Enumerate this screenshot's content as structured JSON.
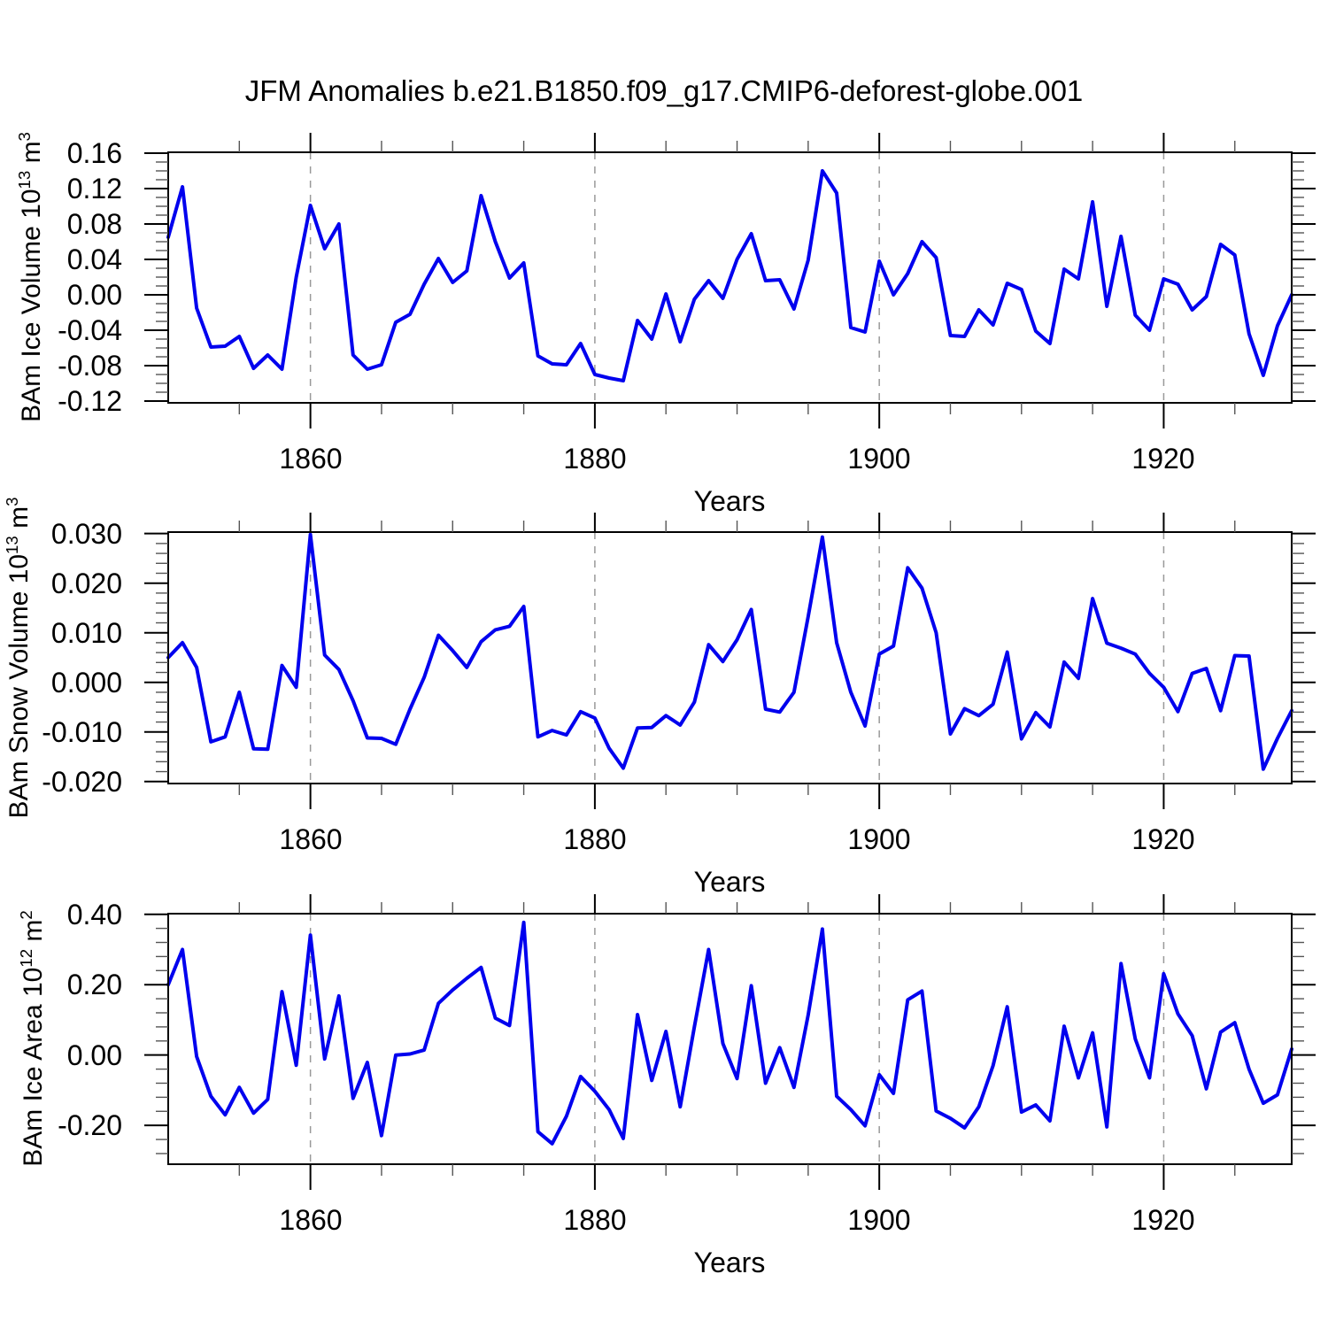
{
  "title": "JFM Anomalies b.e21.B1850.f09_g17.CMIP6-deforest-globe.001",
  "figure": {
    "background": "#ffffff",
    "line_color": "#0000ee",
    "grid_color": "#999999",
    "minor_tick_color": "#555555",
    "axis_color": "#000000"
  },
  "chart_data": [
    {
      "type": "line",
      "name": "bam-ice-volume",
      "ylabel_text": "BAm Ice Volume 10",
      "ylabel_exp": "13",
      "ylabel_unit": " m",
      "ylabel_unit_exp": "3",
      "xlabel": "Years",
      "x_start": 1850,
      "x_end": 1929,
      "x_step": 1,
      "xlim": [
        1850,
        1929
      ],
      "ylim": [
        -0.12,
        0.16
      ],
      "grid": "dashed-vertical-at-major-xticks",
      "legend": "none",
      "xticks": [
        1860,
        1880,
        1900,
        1920
      ],
      "xtick_labels": [
        "1860",
        "1880",
        "1900",
        "1920"
      ],
      "xtick_minor_step": 5,
      "yticks": [
        0.16,
        0.12,
        0.08,
        0.04,
        0.0,
        -0.04,
        -0.08,
        -0.12
      ],
      "ytick_labels": [
        "0.16",
        "0.12",
        "0.08",
        "0.04",
        "0.00",
        "-0.04",
        "-0.08",
        "-0.12"
      ],
      "ytick_minor": {
        "from": -0.12,
        "to": 0.16,
        "step": 0.01
      },
      "values": [
        0.065,
        0.122,
        -0.015,
        -0.059,
        -0.058,
        -0.047,
        -0.083,
        -0.068,
        -0.084,
        0.02,
        0.101,
        0.052,
        0.08,
        -0.068,
        -0.084,
        -0.079,
        -0.031,
        -0.022,
        0.012,
        0.041,
        0.014,
        0.027,
        0.112,
        0.06,
        0.019,
        0.036,
        -0.069,
        -0.078,
        -0.079,
        -0.055,
        -0.09,
        -0.094,
        -0.097,
        -0.029,
        -0.05,
        0.001,
        -0.053,
        -0.005,
        0.016,
        -0.004,
        0.04,
        0.069,
        0.016,
        0.017,
        -0.016,
        0.039,
        0.14,
        0.115,
        -0.037,
        -0.042,
        0.038,
        0.0,
        0.024,
        0.06,
        0.042,
        -0.046,
        -0.047,
        -0.017,
        -0.034,
        0.013,
        0.006,
        -0.041,
        -0.055,
        0.029,
        0.018,
        0.105,
        -0.013,
        0.066,
        -0.023,
        -0.04,
        0.018,
        0.012,
        -0.017,
        -0.002,
        0.057,
        0.045,
        -0.044,
        -0.091,
        -0.035,
        0.0
      ]
    },
    {
      "type": "line",
      "name": "bam-snow-volume",
      "ylabel_text": "BAm Snow Volume 10",
      "ylabel_exp": "13",
      "ylabel_unit": " m",
      "ylabel_unit_exp": "3",
      "xlabel": "Years",
      "x_start": 1850,
      "x_end": 1929,
      "x_step": 1,
      "xlim": [
        1850,
        1929
      ],
      "ylim": [
        -0.02,
        0.03
      ],
      "grid": "dashed-vertical-at-major-xticks",
      "legend": "none",
      "xticks": [
        1860,
        1880,
        1900,
        1920
      ],
      "xtick_labels": [
        "1860",
        "1880",
        "1900",
        "1920"
      ],
      "xtick_minor_step": 5,
      "yticks": [
        0.03,
        0.02,
        0.01,
        0.0,
        -0.01,
        -0.02
      ],
      "ytick_labels": [
        "0.030",
        "0.020",
        "0.010",
        "0.000",
        "-0.010",
        "-0.020"
      ],
      "ytick_minor": {
        "from": -0.02,
        "to": 0.03,
        "step": 0.002
      },
      "values": [
        0.005,
        0.008,
        0.003,
        -0.012,
        -0.011,
        -0.002,
        -0.0134,
        -0.0135,
        0.0034,
        -0.001,
        0.0298,
        0.0055,
        0.0026,
        -0.0037,
        -0.0112,
        -0.0113,
        -0.0125,
        -0.0054,
        0.001,
        0.0095,
        0.0064,
        0.003,
        0.0082,
        0.0106,
        0.0113,
        0.0153,
        -0.011,
        -0.0097,
        -0.0106,
        -0.0059,
        -0.0072,
        -0.0133,
        -0.0173,
        -0.0092,
        -0.0091,
        -0.0067,
        -0.0086,
        -0.004,
        0.0076,
        0.0042,
        0.0086,
        0.0147,
        -0.0054,
        -0.006,
        -0.002,
        0.0132,
        0.0293,
        0.008,
        -0.002,
        -0.0088,
        0.0057,
        0.0073,
        0.0231,
        0.019,
        0.01,
        -0.0104,
        -0.0053,
        -0.0067,
        -0.0044,
        0.0061,
        -0.0114,
        -0.0061,
        -0.009,
        0.0041,
        0.0008,
        0.0169,
        0.0079,
        0.0069,
        0.0057,
        0.0018,
        -0.001,
        -0.0059,
        0.0018,
        0.0028,
        -0.0057,
        0.0054,
        0.0053,
        -0.0175,
        -0.0113,
        -0.0057
      ]
    },
    {
      "type": "line",
      "name": "bam-ice-area",
      "ylabel_text": "BAm Ice Area 10",
      "ylabel_exp": "12",
      "ylabel_unit": " m",
      "ylabel_unit_exp": "2",
      "xlabel": "Years",
      "x_start": 1850,
      "x_end": 1929,
      "x_step": 1,
      "xlim": [
        1850,
        1929
      ],
      "ylim": [
        -0.31,
        0.4
      ],
      "grid": "dashed-vertical-at-major-xticks",
      "legend": "none",
      "xticks": [
        1860,
        1880,
        1900,
        1920
      ],
      "xtick_labels": [
        "1860",
        "1880",
        "1900",
        "1920"
      ],
      "xtick_minor_step": 5,
      "yticks": [
        0.4,
        0.2,
        0.0,
        -0.2
      ],
      "ytick_labels": [
        "0.40",
        "0.20",
        "0.00",
        "-0.20"
      ],
      "ytick_minor": {
        "from": -0.28,
        "to": 0.4,
        "step": 0.04
      },
      "values": [
        0.2,
        0.3,
        -0.004,
        -0.117,
        -0.17,
        -0.092,
        -0.165,
        -0.126,
        0.18,
        -0.029,
        0.341,
        -0.011,
        0.168,
        -0.123,
        -0.021,
        -0.229,
        0.0,
        0.003,
        0.014,
        0.147,
        0.185,
        0.218,
        0.249,
        0.105,
        0.084,
        0.377,
        -0.218,
        -0.252,
        -0.174,
        -0.061,
        -0.103,
        -0.155,
        -0.237,
        0.115,
        -0.072,
        0.067,
        -0.147,
        0.08,
        0.3,
        0.033,
        -0.067,
        0.197,
        -0.08,
        0.021,
        -0.092,
        0.113,
        0.358,
        -0.117,
        -0.155,
        -0.201,
        -0.056,
        -0.109,
        0.157,
        0.182,
        -0.159,
        -0.18,
        -0.207,
        -0.147,
        -0.03,
        0.137,
        -0.162,
        -0.142,
        -0.187,
        0.082,
        -0.065,
        0.063,
        -0.204,
        0.26,
        0.046,
        -0.065,
        0.231,
        0.117,
        0.055,
        -0.096,
        0.065,
        0.092,
        -0.04,
        -0.137,
        -0.113,
        0.017
      ]
    }
  ]
}
